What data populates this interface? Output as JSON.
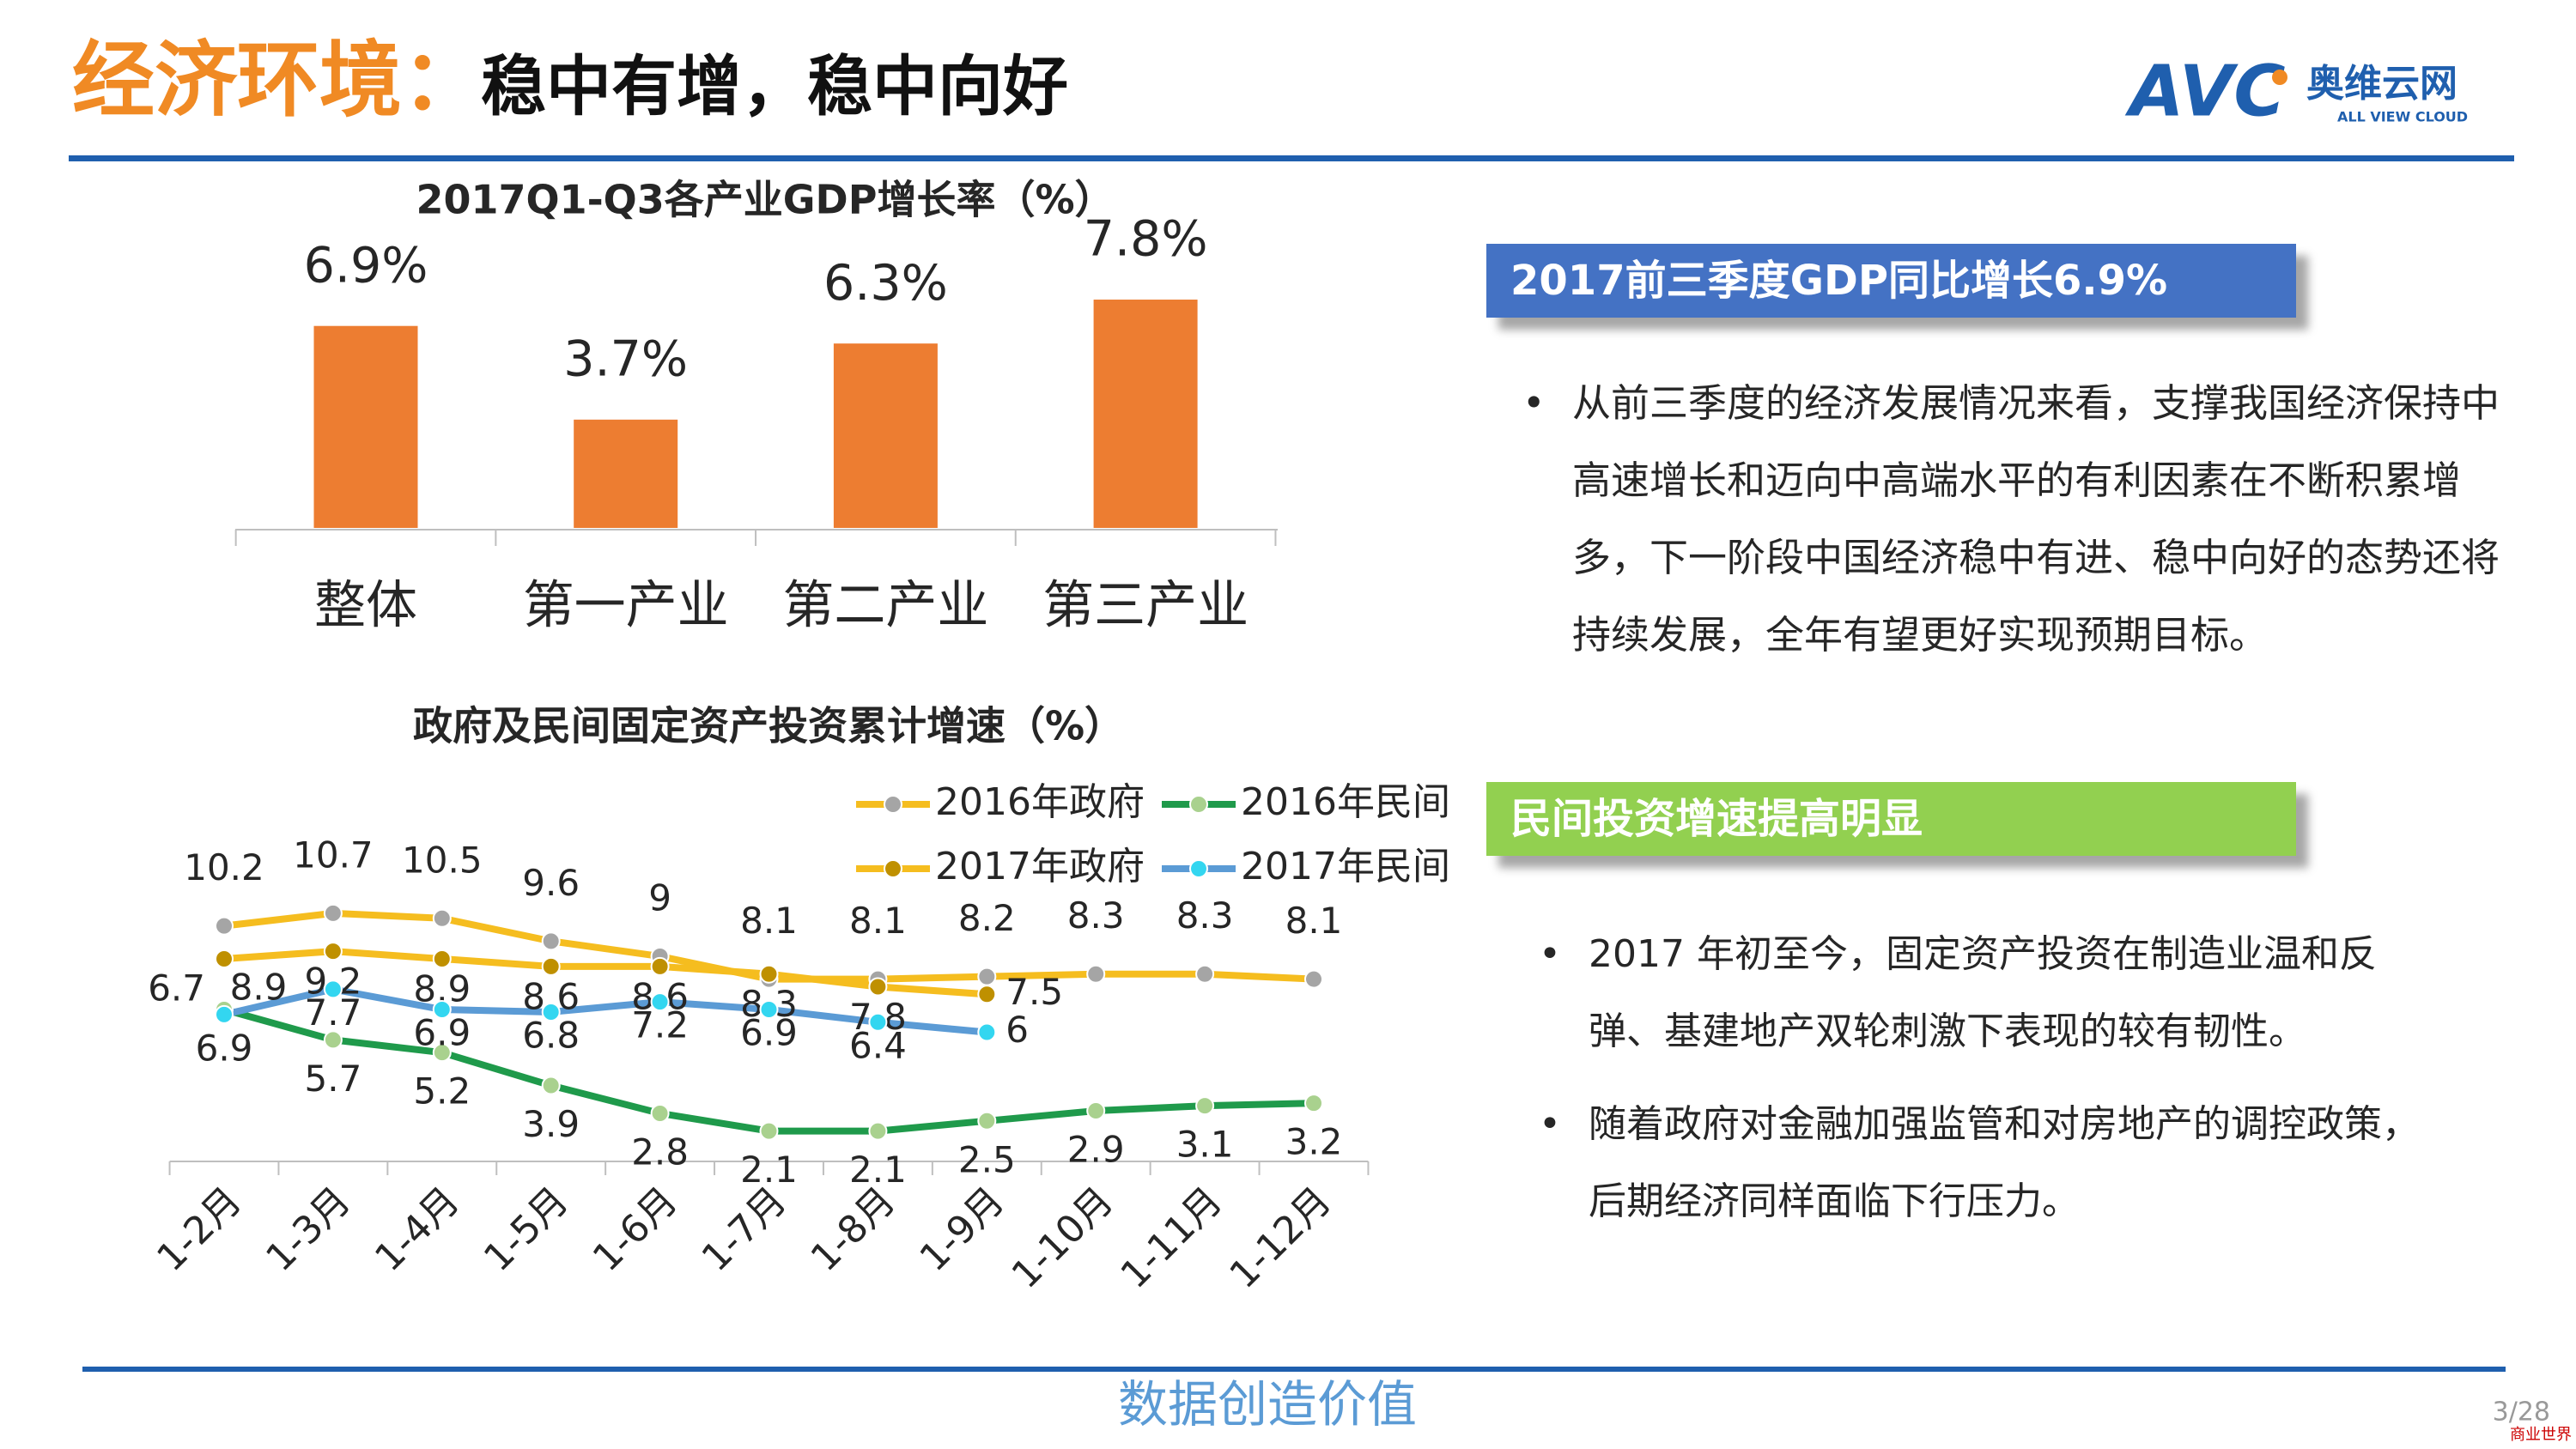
{
  "header": {
    "title": "经济环境：",
    "subtitle": "稳中有增，稳中向好"
  },
  "logo": {
    "mark": "AVC",
    "name": "奥维云网",
    "tagline": "ALL VIEW CLOUD"
  },
  "chart_data": [
    {
      "type": "bar",
      "title": "2017Q1-Q3各产业GDP增长率（%）",
      "categories": [
        "整体",
        "第一产业",
        "第二产业",
        "第三产业"
      ],
      "values": [
        6.9,
        3.7,
        6.3,
        7.8
      ],
      "value_labels": [
        "6.9%",
        "3.7%",
        "6.3%",
        "7.8%"
      ],
      "color": "#ed7d31"
    },
    {
      "type": "line",
      "title": "政府及民间固定资产投资累计增速（%）",
      "categories": [
        "1-2月",
        "1-3月",
        "1-4月",
        "1-5月",
        "1-6月",
        "1-7月",
        "1-8月",
        "1-9月",
        "1-10月",
        "1-11月",
        "1-12月"
      ],
      "legend": "top-right",
      "series": [
        {
          "name": "2016年政府",
          "color": "#f5bd1f",
          "marker_color": "#a5a5a5",
          "values": [
            10.2,
            10.7,
            10.5,
            9.6,
            9,
            8.1,
            8.1,
            8.2,
            8.3,
            8.3,
            8.1
          ]
        },
        {
          "name": "2016年民间",
          "color": "#1f9a4b",
          "marker_color": "#a9d18e",
          "values": [
            6.9,
            5.7,
            5.2,
            3.9,
            2.8,
            2.1,
            2.1,
            2.5,
            2.9,
            3.1,
            3.2
          ]
        },
        {
          "name": "2017年政府",
          "color": "#f5bd1f",
          "marker_color": "#bf9000",
          "values": [
            8.9,
            9.2,
            8.9,
            8.6,
            8.6,
            8.3,
            7.8,
            7.5,
            null,
            null,
            null
          ]
        },
        {
          "name": "2017年民间",
          "color": "#5b9bd5",
          "marker_color": "#33d6f0",
          "values": [
            6.7,
            7.7,
            6.9,
            6.8,
            7.2,
            6.9,
            6.4,
            6,
            null,
            null,
            null
          ]
        }
      ]
    }
  ],
  "panels": [
    {
      "heading": "2017前三季度GDP同比增长6.9%",
      "color": "#4472c4",
      "bullets": [
        "从前三季度的经济发展情况来看，支撑我国经济保持中高速增长和迈向中高端水平的有利因素在不断积累增多，下一阶段中国经济稳中有进、稳中向好的态势还将持续发展，全年有望更好实现预期目标。"
      ]
    },
    {
      "heading": "民间投资增速提高明显",
      "color": "#92d050",
      "bullets": [
        "2017 年初至今，固定资产投资在制造业温和反弹、基建地产双轮刺激下表现的较有韧性。",
        "随着政府对金融加强监管和对房地产的调控政策，后期经济同样面临下行压力。"
      ]
    }
  ],
  "footer": {
    "slogan": "数据创造价值",
    "page": "3/28",
    "watermark": "商业世界"
  }
}
